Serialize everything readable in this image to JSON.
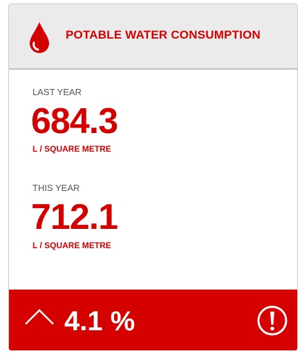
{
  "header": {
    "title": "POTABLE WATER CONSUMPTION"
  },
  "last_year": {
    "label": "LAST YEAR",
    "value": "684.3",
    "unit": "L / SQUARE METRE"
  },
  "this_year": {
    "label": "THIS YEAR",
    "value": "712.1",
    "unit": "L / SQUARE METRE"
  },
  "footer": {
    "change": "4.1 %"
  }
}
